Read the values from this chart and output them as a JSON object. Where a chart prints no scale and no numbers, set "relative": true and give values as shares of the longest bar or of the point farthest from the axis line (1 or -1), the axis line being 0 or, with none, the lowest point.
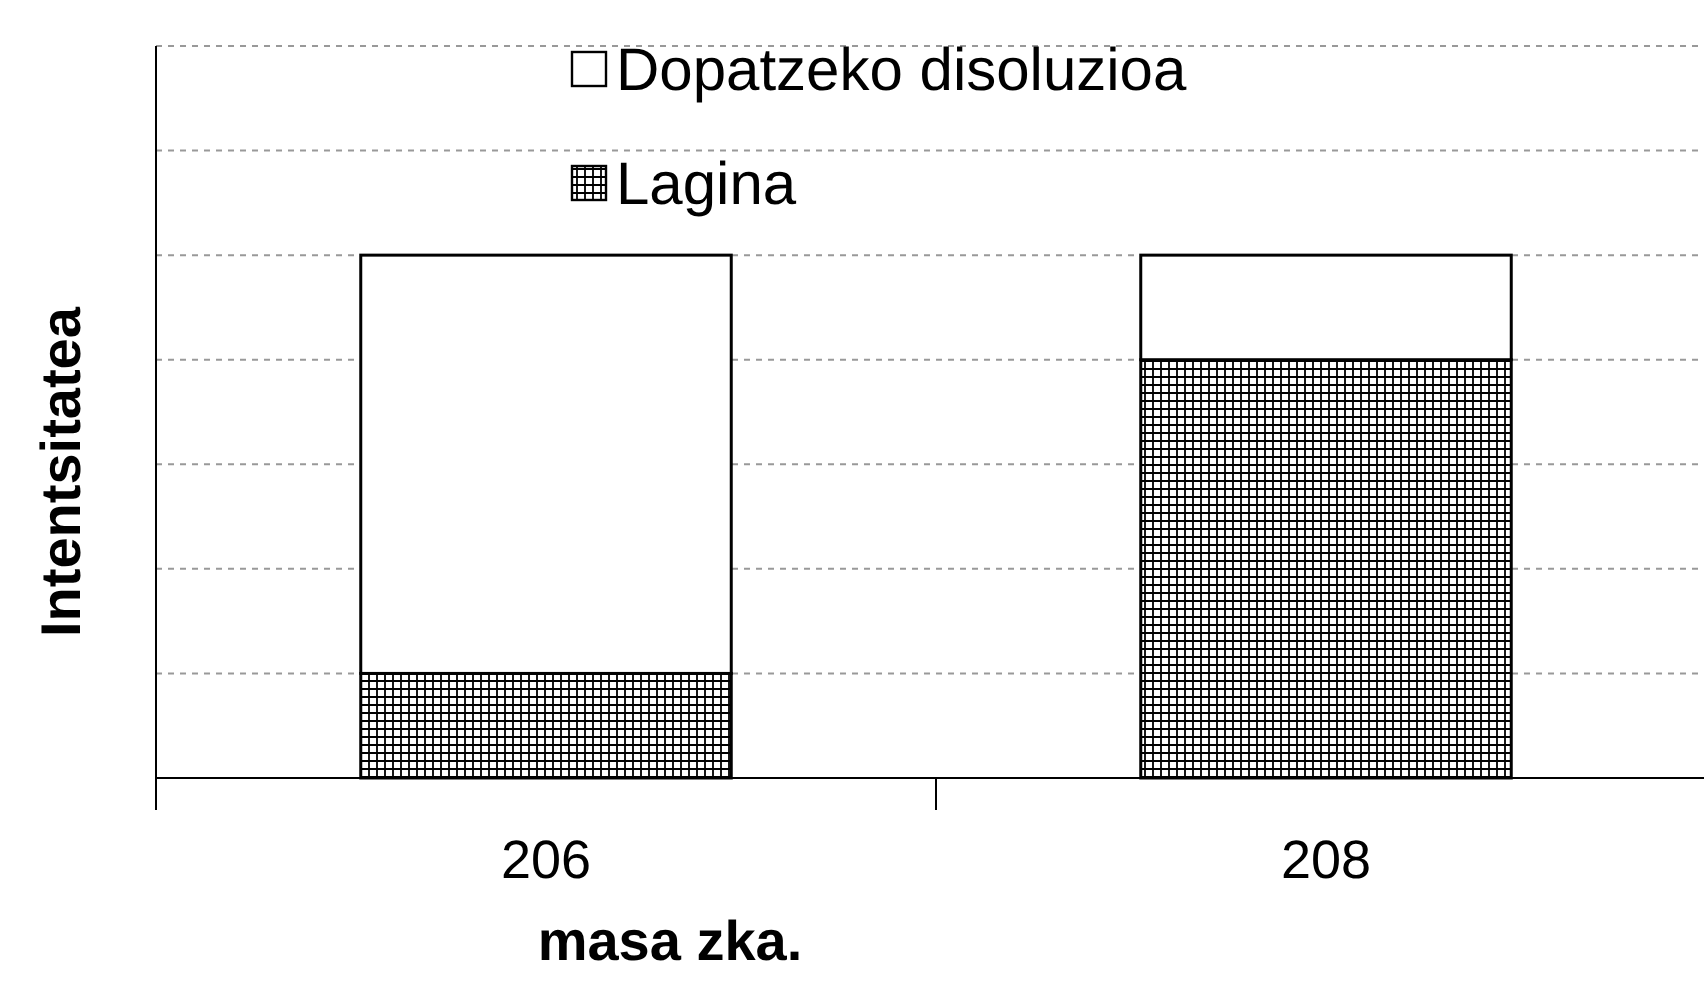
{
  "chart_data": {
    "type": "bar",
    "stacked": true,
    "relative": true,
    "xlabel": "masa zka.",
    "ylabel": "Intentsitatea",
    "categories": [
      "206",
      "208"
    ],
    "series": [
      {
        "name": "Lagina",
        "color": "#000000",
        "values": [
          0.2,
          0.8
        ]
      },
      {
        "name": "Dopatzeko disoluzioa",
        "color": "#ffffff",
        "values": [
          0.8,
          0.2
        ]
      }
    ],
    "grid": "y",
    "legend": "top"
  }
}
